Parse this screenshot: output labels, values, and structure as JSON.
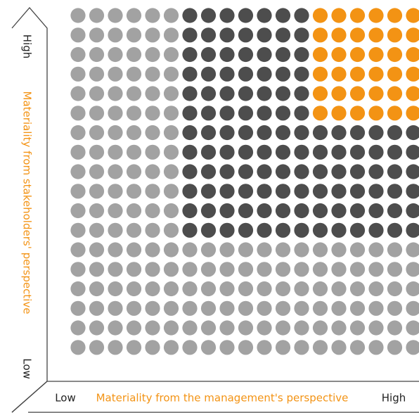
{
  "y_axis": {
    "high_label": "High",
    "low_label": "Low",
    "title": "Materiality from stakeholders' perspective"
  },
  "x_axis": {
    "low_label": "Low",
    "high_label": "High",
    "title": "Materiality from the management's perspective"
  },
  "grid": {
    "columns": 19,
    "rows": 18,
    "zones": [
      {
        "name": "low",
        "color": "#a2a2a2"
      },
      {
        "name": "medium",
        "color": "#4d4d4d"
      },
      {
        "name": "high",
        "color": "#f39314"
      }
    ],
    "medium_columns_from": 6,
    "medium_rows_until": 12,
    "high_columns_from": 13,
    "high_rows_until": 6
  },
  "colors": {
    "accent": "#f39314",
    "text": "#222222",
    "axis_line": "#444444"
  }
}
